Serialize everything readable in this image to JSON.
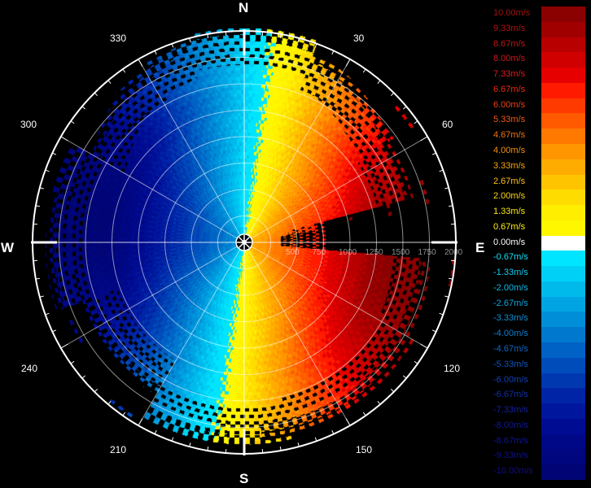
{
  "radar_display": {
    "cardinals": {
      "north": "N",
      "east": "E",
      "south": "S",
      "west": "W"
    },
    "bearings": [
      {
        "angle": 30,
        "label": "30"
      },
      {
        "angle": 60,
        "label": "60"
      },
      {
        "angle": 120,
        "label": "120"
      },
      {
        "angle": 150,
        "label": "150"
      },
      {
        "angle": 210,
        "label": "210"
      },
      {
        "angle": 240,
        "label": "240"
      },
      {
        "angle": 300,
        "label": "300"
      },
      {
        "angle": 330,
        "label": "330"
      }
    ],
    "range_labels": [
      "500",
      "750",
      "1000",
      "1250",
      "1500",
      "1750",
      "2000"
    ],
    "velocity_field": {
      "max_speed_ms": 10,
      "positive_toward": "east",
      "zero_line_bearing": 0
    }
  },
  "legend": {
    "entries": [
      {
        "label": "10.00m/s",
        "color": "#8b0000",
        "text_color": "#a01010"
      },
      {
        "label": "9.33m/s",
        "color": "#a00000",
        "text_color": "#b01010"
      },
      {
        "label": "8.67m/s",
        "color": "#b80000",
        "text_color": "#c01515"
      },
      {
        "label": "8.00m/s",
        "color": "#d00000",
        "text_color": "#d01818"
      },
      {
        "label": "7.33m/s",
        "color": "#e60000",
        "text_color": "#e01a1a"
      },
      {
        "label": "6.67m/s",
        "color": "#ff1a00",
        "text_color": "#ee2a10"
      },
      {
        "label": "6.00m/s",
        "color": "#ff3a00",
        "text_color": "#f04010"
      },
      {
        "label": "5.33m/s",
        "color": "#ff5a00",
        "text_color": "#f25a10"
      },
      {
        "label": "4.67m/s",
        "color": "#ff7800",
        "text_color": "#f47410"
      },
      {
        "label": "4.00m/s",
        "color": "#ff9600",
        "text_color": "#f69010"
      },
      {
        "label": "3.33m/s",
        "color": "#ffac00",
        "text_color": "#f8a810"
      },
      {
        "label": "2.67m/s",
        "color": "#ffc400",
        "text_color": "#fac010"
      },
      {
        "label": "2.00m/s",
        "color": "#ffdc00",
        "text_color": "#fcd410"
      },
      {
        "label": "1.33m/s",
        "color": "#ffee00",
        "text_color": "#fde810"
      },
      {
        "label": "0.67m/s",
        "color": "#fff700",
        "text_color": "#fff010"
      },
      {
        "label": "0.00m/s",
        "color": "#ffffff",
        "text_color": "#ffffff"
      },
      {
        "label": "-0.67m/s",
        "color": "#00e5ff",
        "text_color": "#10e0f8"
      },
      {
        "label": "-1.33m/s",
        "color": "#00d0f5",
        "text_color": "#10ccf0"
      },
      {
        "label": "-2.00m/s",
        "color": "#00baec",
        "text_color": "#10b8e6"
      },
      {
        "label": "-2.67m/s",
        "color": "#00a4e2",
        "text_color": "#10a4dc"
      },
      {
        "label": "-3.33m/s",
        "color": "#008ed8",
        "text_color": "#1090d4"
      },
      {
        "label": "-4.00m/s",
        "color": "#0078ce",
        "text_color": "#107ccc"
      },
      {
        "label": "-4.67m/s",
        "color": "#0062c4",
        "text_color": "#1068c4"
      },
      {
        "label": "-5.33m/s",
        "color": "#004cba",
        "text_color": "#1054bc"
      },
      {
        "label": "-6.00m/s",
        "color": "#0038b0",
        "text_color": "#1040b4"
      },
      {
        "label": "-6.67m/s",
        "color": "#0024a6",
        "text_color": "#1030ac"
      },
      {
        "label": "-7.33m/s",
        "color": "#00169c",
        "text_color": "#1020a4"
      },
      {
        "label": "-8.00m/s",
        "color": "#000c92",
        "text_color": "#10189c"
      },
      {
        "label": "-8.67m/s",
        "color": "#000888",
        "text_color": "#101494"
      },
      {
        "label": "-9.33m/s",
        "color": "#00067e",
        "text_color": "#10108c"
      },
      {
        "label": "-10.00m/s",
        "color": "#000474",
        "text_color": "#100c84"
      }
    ]
  }
}
